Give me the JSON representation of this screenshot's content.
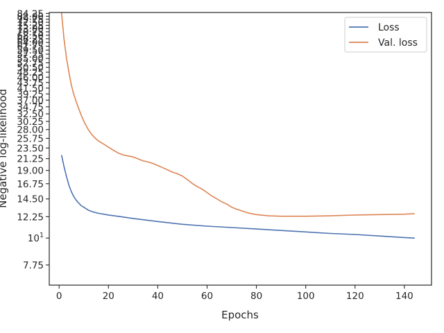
{
  "chart_data": {
    "type": "line",
    "xlabel": "Epochs",
    "ylabel": "Negative log-likelihood",
    "yscale": "log",
    "xlim": [
      -4,
      151
    ],
    "ylim": [
      6.4,
      85
    ],
    "x_ticks": [
      0,
      20,
      40,
      60,
      80,
      100,
      120,
      140
    ],
    "y_ticks": [
      {
        "value": 7.75,
        "label": "7.75"
      },
      {
        "value": 10,
        "label": "10",
        "sup": "1"
      },
      {
        "value": 12.25,
        "label": "12.25"
      },
      {
        "value": 14.5,
        "label": "14.50"
      },
      {
        "value": 16.75,
        "label": "16.75"
      },
      {
        "value": 19.0,
        "label": "19.00"
      },
      {
        "value": 21.25,
        "label": "21.25"
      },
      {
        "value": 23.5,
        "label": "23.50"
      },
      {
        "value": 25.75,
        "label": "25.75"
      },
      {
        "value": 28.0,
        "label": "28.00"
      },
      {
        "value": 30.25,
        "label": "30.25"
      },
      {
        "value": 32.5,
        "label": "32.50"
      },
      {
        "value": 34.75,
        "label": "34.75"
      },
      {
        "value": 37.0,
        "label": "37.00"
      },
      {
        "value": 39.25,
        "label": "39.25"
      },
      {
        "value": 41.5,
        "label": "41.50"
      },
      {
        "value": 43.75,
        "label": "43.75"
      },
      {
        "value": 46.0,
        "label": "46.00"
      },
      {
        "value": 48.25,
        "label": "48.25"
      },
      {
        "value": 50.5,
        "label": "50.50"
      },
      {
        "value": 52.75,
        "label": "52.75"
      },
      {
        "value": 55.0,
        "label": "55.00"
      },
      {
        "value": 57.25,
        "label": "57.25"
      },
      {
        "value": 59.5,
        "label": "59.50"
      },
      {
        "value": 61.75,
        "label": "61.75"
      },
      {
        "value": 64.0,
        "label": "64.00"
      },
      {
        "value": 66.25,
        "label": "66.25"
      },
      {
        "value": 68.5,
        "label": "68.50"
      },
      {
        "value": 70.75,
        "label": "70.75"
      },
      {
        "value": 73.0,
        "label": "73.00"
      },
      {
        "value": 75.25,
        "label": "75.25"
      },
      {
        "value": 77.5,
        "label": "77.50"
      },
      {
        "value": 79.75,
        "label": "79.75"
      },
      {
        "value": 82.0,
        "label": "82.00"
      },
      {
        "value": 84.25,
        "label": "84.25"
      }
    ],
    "legend": "top-right",
    "grid": false,
    "series": [
      {
        "name": "Loss",
        "color": "#4c72b0",
        "x": [
          1,
          2,
          3,
          4,
          5,
          6,
          7,
          8,
          9,
          10,
          12,
          14,
          16,
          18,
          20,
          25,
          30,
          40,
          50,
          60,
          70,
          80,
          90,
          100,
          110,
          120,
          130,
          140,
          144
        ],
        "y": [
          21.9,
          19.7,
          17.9,
          16.5,
          15.5,
          14.8,
          14.3,
          13.9,
          13.6,
          13.4,
          13.0,
          12.8,
          12.65,
          12.55,
          12.45,
          12.25,
          12.05,
          11.7,
          11.4,
          11.2,
          11.05,
          10.9,
          10.75,
          10.6,
          10.45,
          10.35,
          10.2,
          10.05,
          10.0
        ]
      },
      {
        "name": "Val. loss",
        "color": "#dd8452",
        "x": [
          1,
          2,
          3,
          4,
          5,
          6,
          7,
          8,
          9,
          10,
          11,
          12,
          13,
          14,
          15,
          16,
          18,
          20,
          22,
          24,
          26,
          28,
          30,
          32,
          34,
          36,
          38,
          40,
          42,
          44,
          46,
          48,
          50,
          52,
          54,
          56,
          58,
          60,
          62,
          64,
          66,
          68,
          70,
          72,
          74,
          76,
          78,
          80,
          85,
          90,
          95,
          100,
          110,
          120,
          130,
          140,
          144
        ],
        "y": [
          84.3,
          66.0,
          55.0,
          48.0,
          42.5,
          39.0,
          36.3,
          34.0,
          32.0,
          30.3,
          29.0,
          27.8,
          26.9,
          26.2,
          25.6,
          25.1,
          24.4,
          23.7,
          23.0,
          22.4,
          22.0,
          21.8,
          21.6,
          21.2,
          20.8,
          20.6,
          20.3,
          19.9,
          19.5,
          19.1,
          18.7,
          18.4,
          18.0,
          17.4,
          16.8,
          16.3,
          15.9,
          15.4,
          14.9,
          14.5,
          14.1,
          13.8,
          13.4,
          13.15,
          12.95,
          12.75,
          12.6,
          12.5,
          12.35,
          12.3,
          12.3,
          12.3,
          12.35,
          12.45,
          12.5,
          12.55,
          12.6
        ]
      }
    ]
  }
}
